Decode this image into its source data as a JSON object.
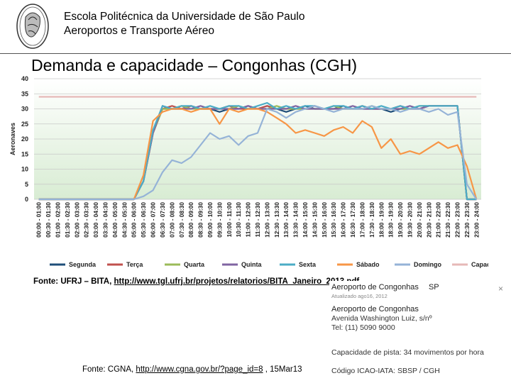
{
  "header": {
    "institution_line1": "Escola Politécnica da Universidade de São Paulo",
    "institution_line2": "Aeroportos e Transporte Aéreo"
  },
  "slide_title": "Demanda e capacidade – Congonhas (CGH)",
  "chart_data": {
    "type": "line",
    "title": "",
    "xlabel": "",
    "ylabel": "Aeronaves",
    "ylim": [
      0,
      40
    ],
    "yticks": [
      0,
      5,
      10,
      15,
      20,
      25,
      30,
      35,
      40
    ],
    "grid": true,
    "legend_position": "bottom",
    "categories": [
      "00:00 - 01:00",
      "00:30 - 01:30",
      "01:00 - 02:00",
      "01:30 - 02:30",
      "02:00 - 03:00",
      "02:30 - 03:30",
      "03:00 - 04:00",
      "03:30 - 04:30",
      "04:00 - 05:00",
      "04:30 - 05:30",
      "05:00 - 06:00",
      "05:30 - 06:30",
      "06:00 - 07:00",
      "06:30 - 07:30",
      "07:00 - 08:00",
      "07:30 - 08:30",
      "08:00 - 09:00",
      "08:30 - 09:30",
      "09:00 - 10:00",
      "09:30 - 10:30",
      "10:00 - 11:00",
      "10:30 - 11:30",
      "11:00 - 12:00",
      "11:30 - 12:30",
      "12:00 - 13:00",
      "12:30 - 13:30",
      "13:00 - 14:00",
      "13:30 - 14:30",
      "14:00 - 15:00",
      "14:30 - 15:30",
      "15:00 - 16:00",
      "15:30 - 16:30",
      "16:00 - 17:00",
      "16:30 - 17:30",
      "17:00 - 18:00",
      "17:30 - 18:30",
      "18:00 - 19:00",
      "18:30 - 19:30",
      "19:00 - 20:00",
      "19:30 - 20:30",
      "20:00 - 21:00",
      "20:30 - 21:30",
      "21:00 - 22:00",
      "21:30 - 22:30",
      "22:00 - 23:00",
      "22:30 - 23:30",
      "23:00 - 24:00"
    ],
    "series": [
      {
        "name": "Segunda",
        "color": "#1f4e79",
        "values": [
          0,
          0,
          0,
          0,
          0,
          0,
          0,
          0,
          0,
          0,
          0,
          6,
          22,
          30,
          30,
          30,
          31,
          30,
          30,
          29,
          30,
          30,
          31,
          30,
          31,
          30,
          29,
          30,
          31,
          30,
          30,
          30,
          31,
          30,
          30,
          30,
          30,
          29,
          30,
          30,
          30,
          31,
          31,
          31,
          31,
          0,
          0
        ]
      },
      {
        "name": "Terça",
        "color": "#c0504d",
        "values": [
          0,
          0,
          0,
          0,
          0,
          0,
          0,
          0,
          0,
          0,
          0,
          6,
          22,
          30,
          31,
          30,
          31,
          30,
          30,
          30,
          31,
          30,
          30,
          30,
          31,
          30,
          30,
          30,
          30,
          31,
          30,
          30,
          30,
          30,
          31,
          30,
          30,
          30,
          31,
          30,
          30,
          31,
          31,
          31,
          31,
          0,
          0
        ]
      },
      {
        "name": "Quarta",
        "color": "#9bbb59",
        "values": [
          0,
          0,
          0,
          0,
          0,
          0,
          0,
          0,
          0,
          0,
          0,
          6,
          22,
          30,
          30,
          31,
          30,
          30,
          30,
          30,
          30,
          31,
          30,
          30,
          30,
          31,
          30,
          30,
          30,
          30,
          30,
          31,
          30,
          30,
          30,
          31,
          30,
          30,
          30,
          30,
          31,
          31,
          31,
          31,
          31,
          0,
          0
        ]
      },
      {
        "name": "Quinta",
        "color": "#8064a2",
        "values": [
          0,
          0,
          0,
          0,
          0,
          0,
          0,
          0,
          0,
          0,
          0,
          6,
          22,
          31,
          30,
          30,
          30,
          31,
          30,
          30,
          30,
          30,
          31,
          30,
          30,
          30,
          30,
          31,
          30,
          30,
          30,
          30,
          30,
          31,
          30,
          30,
          30,
          30,
          30,
          31,
          30,
          31,
          31,
          31,
          31,
          0,
          0
        ]
      },
      {
        "name": "Sexta",
        "color": "#4bacc6",
        "values": [
          0,
          0,
          0,
          0,
          0,
          0,
          0,
          0,
          0,
          0,
          0,
          6,
          23,
          31,
          30,
          31,
          31,
          30,
          31,
          30,
          31,
          31,
          30,
          31,
          32,
          30,
          31,
          30,
          31,
          31,
          30,
          31,
          31,
          30,
          31,
          30,
          31,
          30,
          31,
          30,
          31,
          31,
          31,
          31,
          31,
          0,
          0
        ]
      },
      {
        "name": "Sábado",
        "color": "#f79646",
        "values": [
          0,
          0,
          0,
          0,
          0,
          0,
          0,
          0,
          0,
          0,
          0,
          8,
          26,
          29,
          30,
          30,
          29,
          30,
          30,
          25,
          30,
          29,
          30,
          30,
          29,
          27,
          25,
          22,
          23,
          22,
          21,
          23,
          24,
          22,
          26,
          24,
          17,
          20,
          15,
          16,
          15,
          17,
          19,
          17,
          18,
          11,
          0
        ]
      },
      {
        "name": "Domingo",
        "color": "#95b3d7",
        "values": [
          0,
          0,
          0,
          0,
          0,
          0,
          0,
          0,
          0,
          0,
          0,
          1,
          3,
          9,
          13,
          12,
          14,
          18,
          22,
          20,
          21,
          18,
          21,
          22,
          30,
          29,
          27,
          29,
          30,
          31,
          30,
          29,
          30,
          30,
          30,
          31,
          30,
          30,
          29,
          30,
          30,
          29,
          30,
          28,
          29,
          5,
          0
        ]
      },
      {
        "name": "Capacidade",
        "color": "#e6b8b7",
        "values": [
          34,
          34,
          34,
          34,
          34,
          34,
          34,
          34,
          34,
          34,
          34,
          34,
          34,
          34,
          34,
          34,
          34,
          34,
          34,
          34,
          34,
          34,
          34,
          34,
          34,
          34,
          34,
          34,
          34,
          34,
          34,
          34,
          34,
          34,
          34,
          34,
          34,
          34,
          34,
          34,
          34,
          34,
          34,
          34,
          34,
          34,
          34
        ]
      }
    ]
  },
  "sources": {
    "source1_prefix": "Fonte: UFRJ – BITA, ",
    "source1_link": "http://www.tgl.ufrj.br/projetos/relatorios/BITA_Janeiro_2013.pdf",
    "source2_prefix": "Fonte: CGNA, ",
    "source2_link": "http://www.cgna.gov.br/?page_id=8",
    "source2_suffix": " , 15Mar13"
  },
  "info_card": {
    "name": "Aeroporto de Congonhas",
    "state": "SP",
    "updated": "Atualizado ago16, 2012",
    "name2": "Aeroporto de Congonhas",
    "address": "Avenida Washington Luiz, s/nº",
    "phone": "Tel: (11) 5090 9000",
    "capacity": "Capacidade de pista: 34 movimentos por hora",
    "icao": "Código ICAO-IATA: SBSP / CGH",
    "close_symbol": "×"
  }
}
